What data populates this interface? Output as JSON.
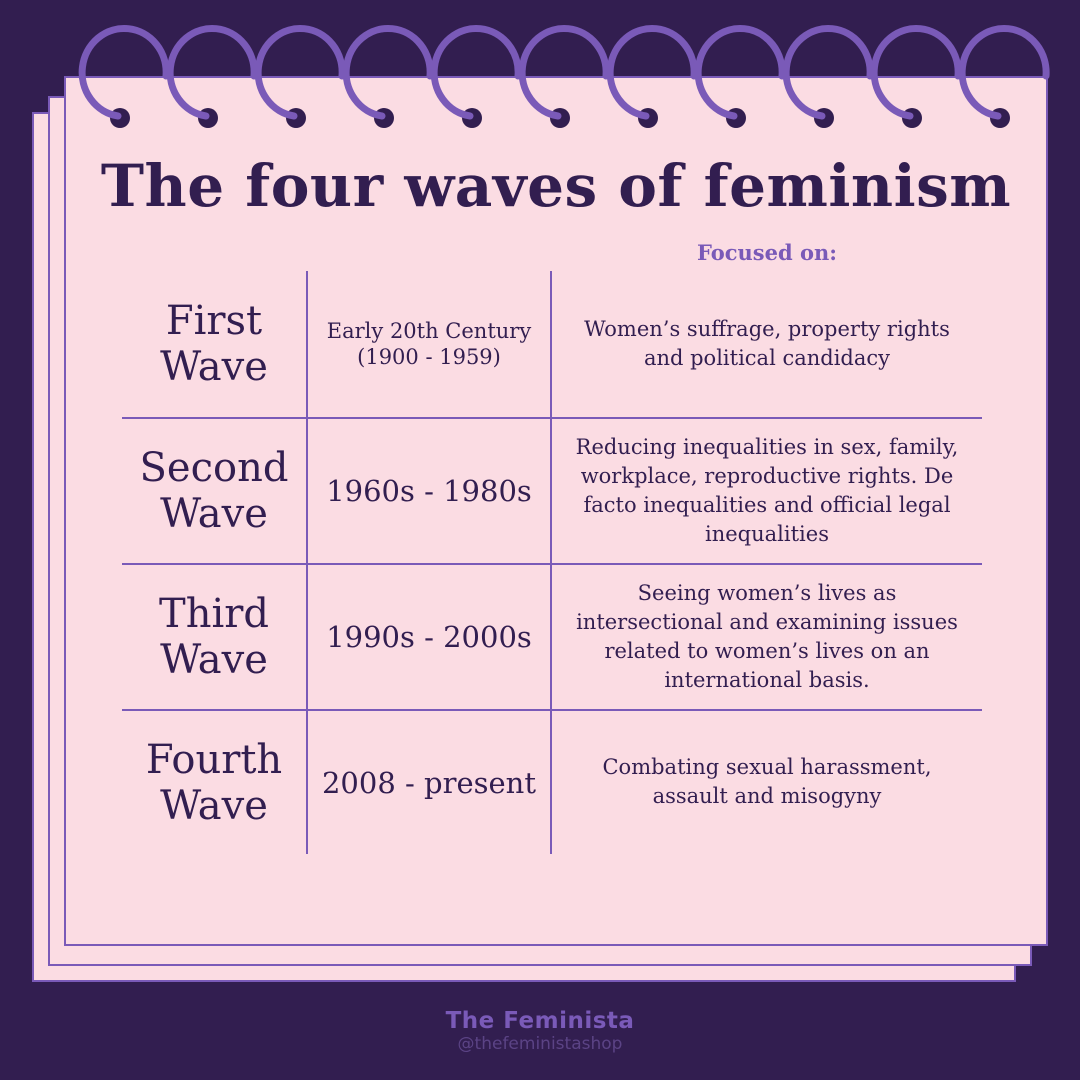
{
  "title": "The four waves of feminism",
  "focused_label": "Focused on:",
  "waves": [
    {
      "name_line1": "First",
      "name_line2": "Wave",
      "period": "Early 20th Century\n(1900 - 1959)",
      "focus": "Women’s suffrage, property rights and political candidacy"
    },
    {
      "name_line1": "Second",
      "name_line2": "Wave",
      "period": "1960s - 1980s",
      "focus": "Reducing inequalities in sex, family, workplace, reproductive rights. De facto inequalities and official legal inequalities"
    },
    {
      "name_line1": "Third",
      "name_line2": "Wave",
      "period": "1990s - 2000s",
      "focus": "Seeing women’s lives as intersectional and examining issues related to women’s lives on an international basis."
    },
    {
      "name_line1": "Fourth",
      "name_line2": "Wave",
      "period": "2008 - present",
      "focus": "Combating sexual harassment, assault and misogyny"
    }
  ],
  "footer": {
    "brand": "The Feminista",
    "handle": "@thefeministashop"
  },
  "colors": {
    "background": "#321e50",
    "paper": "#fbdce3",
    "accent": "#7a5ab8",
    "text": "#321e50"
  }
}
